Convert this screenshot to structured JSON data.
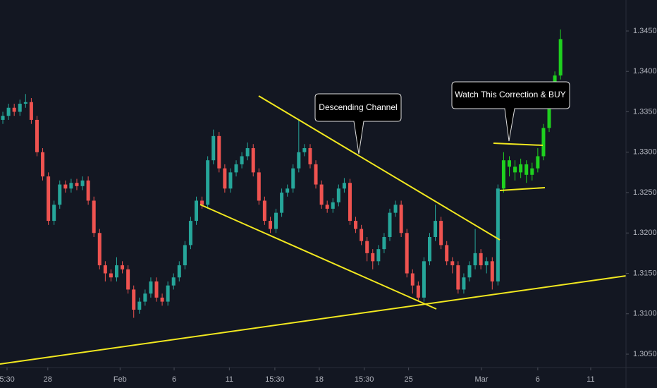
{
  "chart_data": {
    "type": "candlestick",
    "annotations": [
      "Descending Channel",
      "Watch This Correction & BUY"
    ],
    "xlim": [
      -0.5,
      109.5
    ],
    "xticks": [
      {
        "value": 0.74,
        "label": "5:30"
      },
      {
        "value": 7.9,
        "label": "28"
      },
      {
        "value": 20.6,
        "label": "Feb"
      },
      {
        "value": 30.1,
        "label": "6"
      },
      {
        "value": 39.8,
        "label": "11"
      },
      {
        "value": 47.8,
        "label": "15:30"
      },
      {
        "value": 55.6,
        "label": "18"
      },
      {
        "value": 63.5,
        "label": "15:30"
      },
      {
        "value": 71.3,
        "label": "25"
      },
      {
        "value": 84.1,
        "label": "Mar"
      },
      {
        "value": 94,
        "label": "6"
      },
      {
        "value": 103.3,
        "label": "11"
      }
    ],
    "ylim": [
      1.30343,
      1.34884
    ],
    "yticks": [
      {
        "value": 1.345,
        "label": "1.34500"
      },
      {
        "value": 1.34,
        "label": "1.34000"
      },
      {
        "value": 1.335,
        "label": "1.33500"
      },
      {
        "value": 1.33,
        "label": "1.33000"
      },
      {
        "value": 1.325,
        "label": "1.32500"
      },
      {
        "value": 1.32,
        "label": "1.32000"
      },
      {
        "value": 1.315,
        "label": "1.31500"
      },
      {
        "value": 1.31,
        "label": "1.31000"
      },
      {
        "value": 1.305,
        "label": "1.30500"
      }
    ],
    "series": [
      {
        "up_color": "#26a69a",
        "down_color": "#ef5350",
        "x": [
          0,
          1,
          2,
          3,
          4,
          5,
          6,
          7,
          8,
          9,
          10,
          11,
          12,
          13,
          14,
          15,
          16,
          17,
          18,
          19,
          20,
          21,
          22,
          23,
          24,
          25,
          26,
          27,
          28,
          29,
          30,
          31,
          32,
          33,
          34,
          35,
          36,
          37,
          38,
          39,
          40,
          41,
          42,
          43,
          44,
          45,
          46,
          47,
          48,
          49,
          50,
          51,
          52,
          53,
          54,
          55,
          56,
          57,
          58,
          59,
          60,
          61,
          62,
          63,
          64,
          65,
          66,
          67,
          68,
          69,
          70,
          71,
          72,
          73,
          74,
          75,
          76,
          77,
          78,
          79,
          80,
          81,
          82,
          83,
          84,
          85,
          86,
          87
        ],
        "ohlc": [
          [
            1.334,
            1.335,
            1.3335,
            1.3345
          ],
          [
            1.3345,
            1.336,
            1.334,
            1.3355
          ],
          [
            1.3355,
            1.336,
            1.3345,
            1.335
          ],
          [
            1.335,
            1.3365,
            1.3345,
            1.336
          ],
          [
            1.336,
            1.3372,
            1.3355,
            1.3362
          ],
          [
            1.3362,
            1.3367,
            1.3335,
            1.334
          ],
          [
            1.334,
            1.3345,
            1.3295,
            1.33
          ],
          [
            1.33,
            1.3305,
            1.3265,
            1.327
          ],
          [
            1.327,
            1.3275,
            1.321,
            1.3215
          ],
          [
            1.3215,
            1.324,
            1.321,
            1.3235
          ],
          [
            1.3235,
            1.3265,
            1.323,
            1.326
          ],
          [
            1.326,
            1.3265,
            1.325,
            1.3255
          ],
          [
            1.3255,
            1.3267,
            1.325,
            1.3262
          ],
          [
            1.3262,
            1.3267,
            1.3253,
            1.3258
          ],
          [
            1.3258,
            1.327,
            1.3253,
            1.3265
          ],
          [
            1.3265,
            1.327,
            1.3235,
            1.324
          ],
          [
            1.324,
            1.3245,
            1.3195,
            1.32
          ],
          [
            1.32,
            1.3205,
            1.3155,
            1.316
          ],
          [
            1.316,
            1.3165,
            1.314,
            1.315
          ],
          [
            1.315,
            1.3155,
            1.314,
            1.3145
          ],
          [
            1.3145,
            1.317,
            1.314,
            1.316
          ],
          [
            1.316,
            1.3165,
            1.315,
            1.3155
          ],
          [
            1.3155,
            1.316,
            1.3125,
            1.313
          ],
          [
            1.313,
            1.3135,
            1.3095,
            1.3105
          ],
          [
            1.3105,
            1.312,
            1.31,
            1.3115
          ],
          [
            1.3115,
            1.313,
            1.311,
            1.3125
          ],
          [
            1.3125,
            1.3145,
            1.312,
            1.314
          ],
          [
            1.314,
            1.3145,
            1.3115,
            1.312
          ],
          [
            1.312,
            1.3125,
            1.311,
            1.3115
          ],
          [
            1.3115,
            1.314,
            1.311,
            1.3135
          ],
          [
            1.3135,
            1.315,
            1.313,
            1.3145
          ],
          [
            1.3145,
            1.3165,
            1.314,
            1.316
          ],
          [
            1.316,
            1.319,
            1.3155,
            1.3185
          ],
          [
            1.3185,
            1.322,
            1.318,
            1.3215
          ],
          [
            1.3215,
            1.3245,
            1.321,
            1.324
          ],
          [
            1.324,
            1.3245,
            1.323,
            1.3235
          ],
          [
            1.3235,
            1.3295,
            1.323,
            1.329
          ],
          [
            1.329,
            1.3328,
            1.3285,
            1.332
          ],
          [
            1.332,
            1.3325,
            1.3275,
            1.328
          ],
          [
            1.328,
            1.3285,
            1.325,
            1.3255
          ],
          [
            1.3255,
            1.328,
            1.325,
            1.3275
          ],
          [
            1.3275,
            1.329,
            1.327,
            1.3285
          ],
          [
            1.3285,
            1.33,
            1.328,
            1.3295
          ],
          [
            1.3295,
            1.3312,
            1.329,
            1.3305
          ],
          [
            1.3305,
            1.331,
            1.327,
            1.3275
          ],
          [
            1.3275,
            1.328,
            1.3235,
            1.324
          ],
          [
            1.324,
            1.3245,
            1.321,
            1.3215
          ],
          [
            1.3215,
            1.322,
            1.32,
            1.3205
          ],
          [
            1.3205,
            1.323,
            1.32,
            1.3225
          ],
          [
            1.3225,
            1.3255,
            1.322,
            1.325
          ],
          [
            1.325,
            1.326,
            1.3245,
            1.3255
          ],
          [
            1.3255,
            1.3285,
            1.325,
            1.328
          ],
          [
            1.328,
            1.334,
            1.3275,
            1.33
          ],
          [
            1.33,
            1.331,
            1.3295,
            1.3305
          ],
          [
            1.3305,
            1.331,
            1.328,
            1.3285
          ],
          [
            1.3285,
            1.329,
            1.3255,
            1.326
          ],
          [
            1.326,
            1.3265,
            1.323,
            1.3235
          ],
          [
            1.3235,
            1.324,
            1.3225,
            1.323
          ],
          [
            1.323,
            1.3243,
            1.3225,
            1.3238
          ],
          [
            1.3238,
            1.326,
            1.3233,
            1.3255
          ],
          [
            1.3255,
            1.3268,
            1.325,
            1.3262
          ],
          [
            1.3262,
            1.3267,
            1.321,
            1.3215
          ],
          [
            1.3215,
            1.322,
            1.32,
            1.3205
          ],
          [
            1.3205,
            1.321,
            1.3185,
            1.319
          ],
          [
            1.319,
            1.3195,
            1.3165,
            1.3175
          ],
          [
            1.3175,
            1.318,
            1.3155,
            1.3165
          ],
          [
            1.3165,
            1.3185,
            1.316,
            1.318
          ],
          [
            1.318,
            1.32,
            1.3175,
            1.3195
          ],
          [
            1.3195,
            1.323,
            1.319,
            1.3225
          ],
          [
            1.3225,
            1.324,
            1.322,
            1.3235
          ],
          [
            1.3235,
            1.324,
            1.3195,
            1.32
          ],
          [
            1.32,
            1.3205,
            1.3145,
            1.315
          ],
          [
            1.315,
            1.3155,
            1.3125,
            1.3135
          ],
          [
            1.3135,
            1.314,
            1.3115,
            1.312
          ],
          [
            1.312,
            1.317,
            1.3115,
            1.3165
          ],
          [
            1.3165,
            1.32,
            1.316,
            1.3195
          ],
          [
            1.3195,
            1.3235,
            1.319,
            1.3215
          ],
          [
            1.3215,
            1.322,
            1.318,
            1.3185
          ],
          [
            1.3185,
            1.319,
            1.316,
            1.3165
          ],
          [
            1.3165,
            1.317,
            1.315,
            1.316
          ],
          [
            1.316,
            1.3165,
            1.3125,
            1.313
          ],
          [
            1.313,
            1.315,
            1.3125,
            1.3145
          ],
          [
            1.3145,
            1.3165,
            1.314,
            1.316
          ],
          [
            1.316,
            1.3205,
            1.3155,
            1.3175
          ],
          [
            1.3175,
            1.318,
            1.3155,
            1.316
          ],
          [
            1.316,
            1.317,
            1.315,
            1.3165
          ],
          [
            1.3165,
            1.317,
            1.313,
            1.314
          ],
          [
            1.314,
            1.326,
            1.3135,
            1.3255
          ]
        ]
      },
      {
        "color": "#1fd01f",
        "x": [
          88,
          89,
          90,
          91,
          92,
          93,
          94,
          95,
          96,
          97,
          98
        ],
        "ohlc": [
          [
            1.3255,
            1.33,
            1.325,
            1.329
          ],
          [
            1.329,
            1.3295,
            1.327,
            1.3282
          ],
          [
            1.3282,
            1.329,
            1.3265,
            1.3275
          ],
          [
            1.3275,
            1.3292,
            1.3268,
            1.3285
          ],
          [
            1.3285,
            1.329,
            1.3262,
            1.3272
          ],
          [
            1.3272,
            1.3287,
            1.3265,
            1.328
          ],
          [
            1.328,
            1.3305,
            1.3275,
            1.3295
          ],
          [
            1.3295,
            1.3335,
            1.329,
            1.333
          ],
          [
            1.333,
            1.337,
            1.3325,
            1.3365
          ],
          [
            1.3365,
            1.34,
            1.336,
            1.3395
          ],
          [
            1.3395,
            1.3452,
            1.339,
            1.344
          ]
        ]
      }
    ]
  }
}
